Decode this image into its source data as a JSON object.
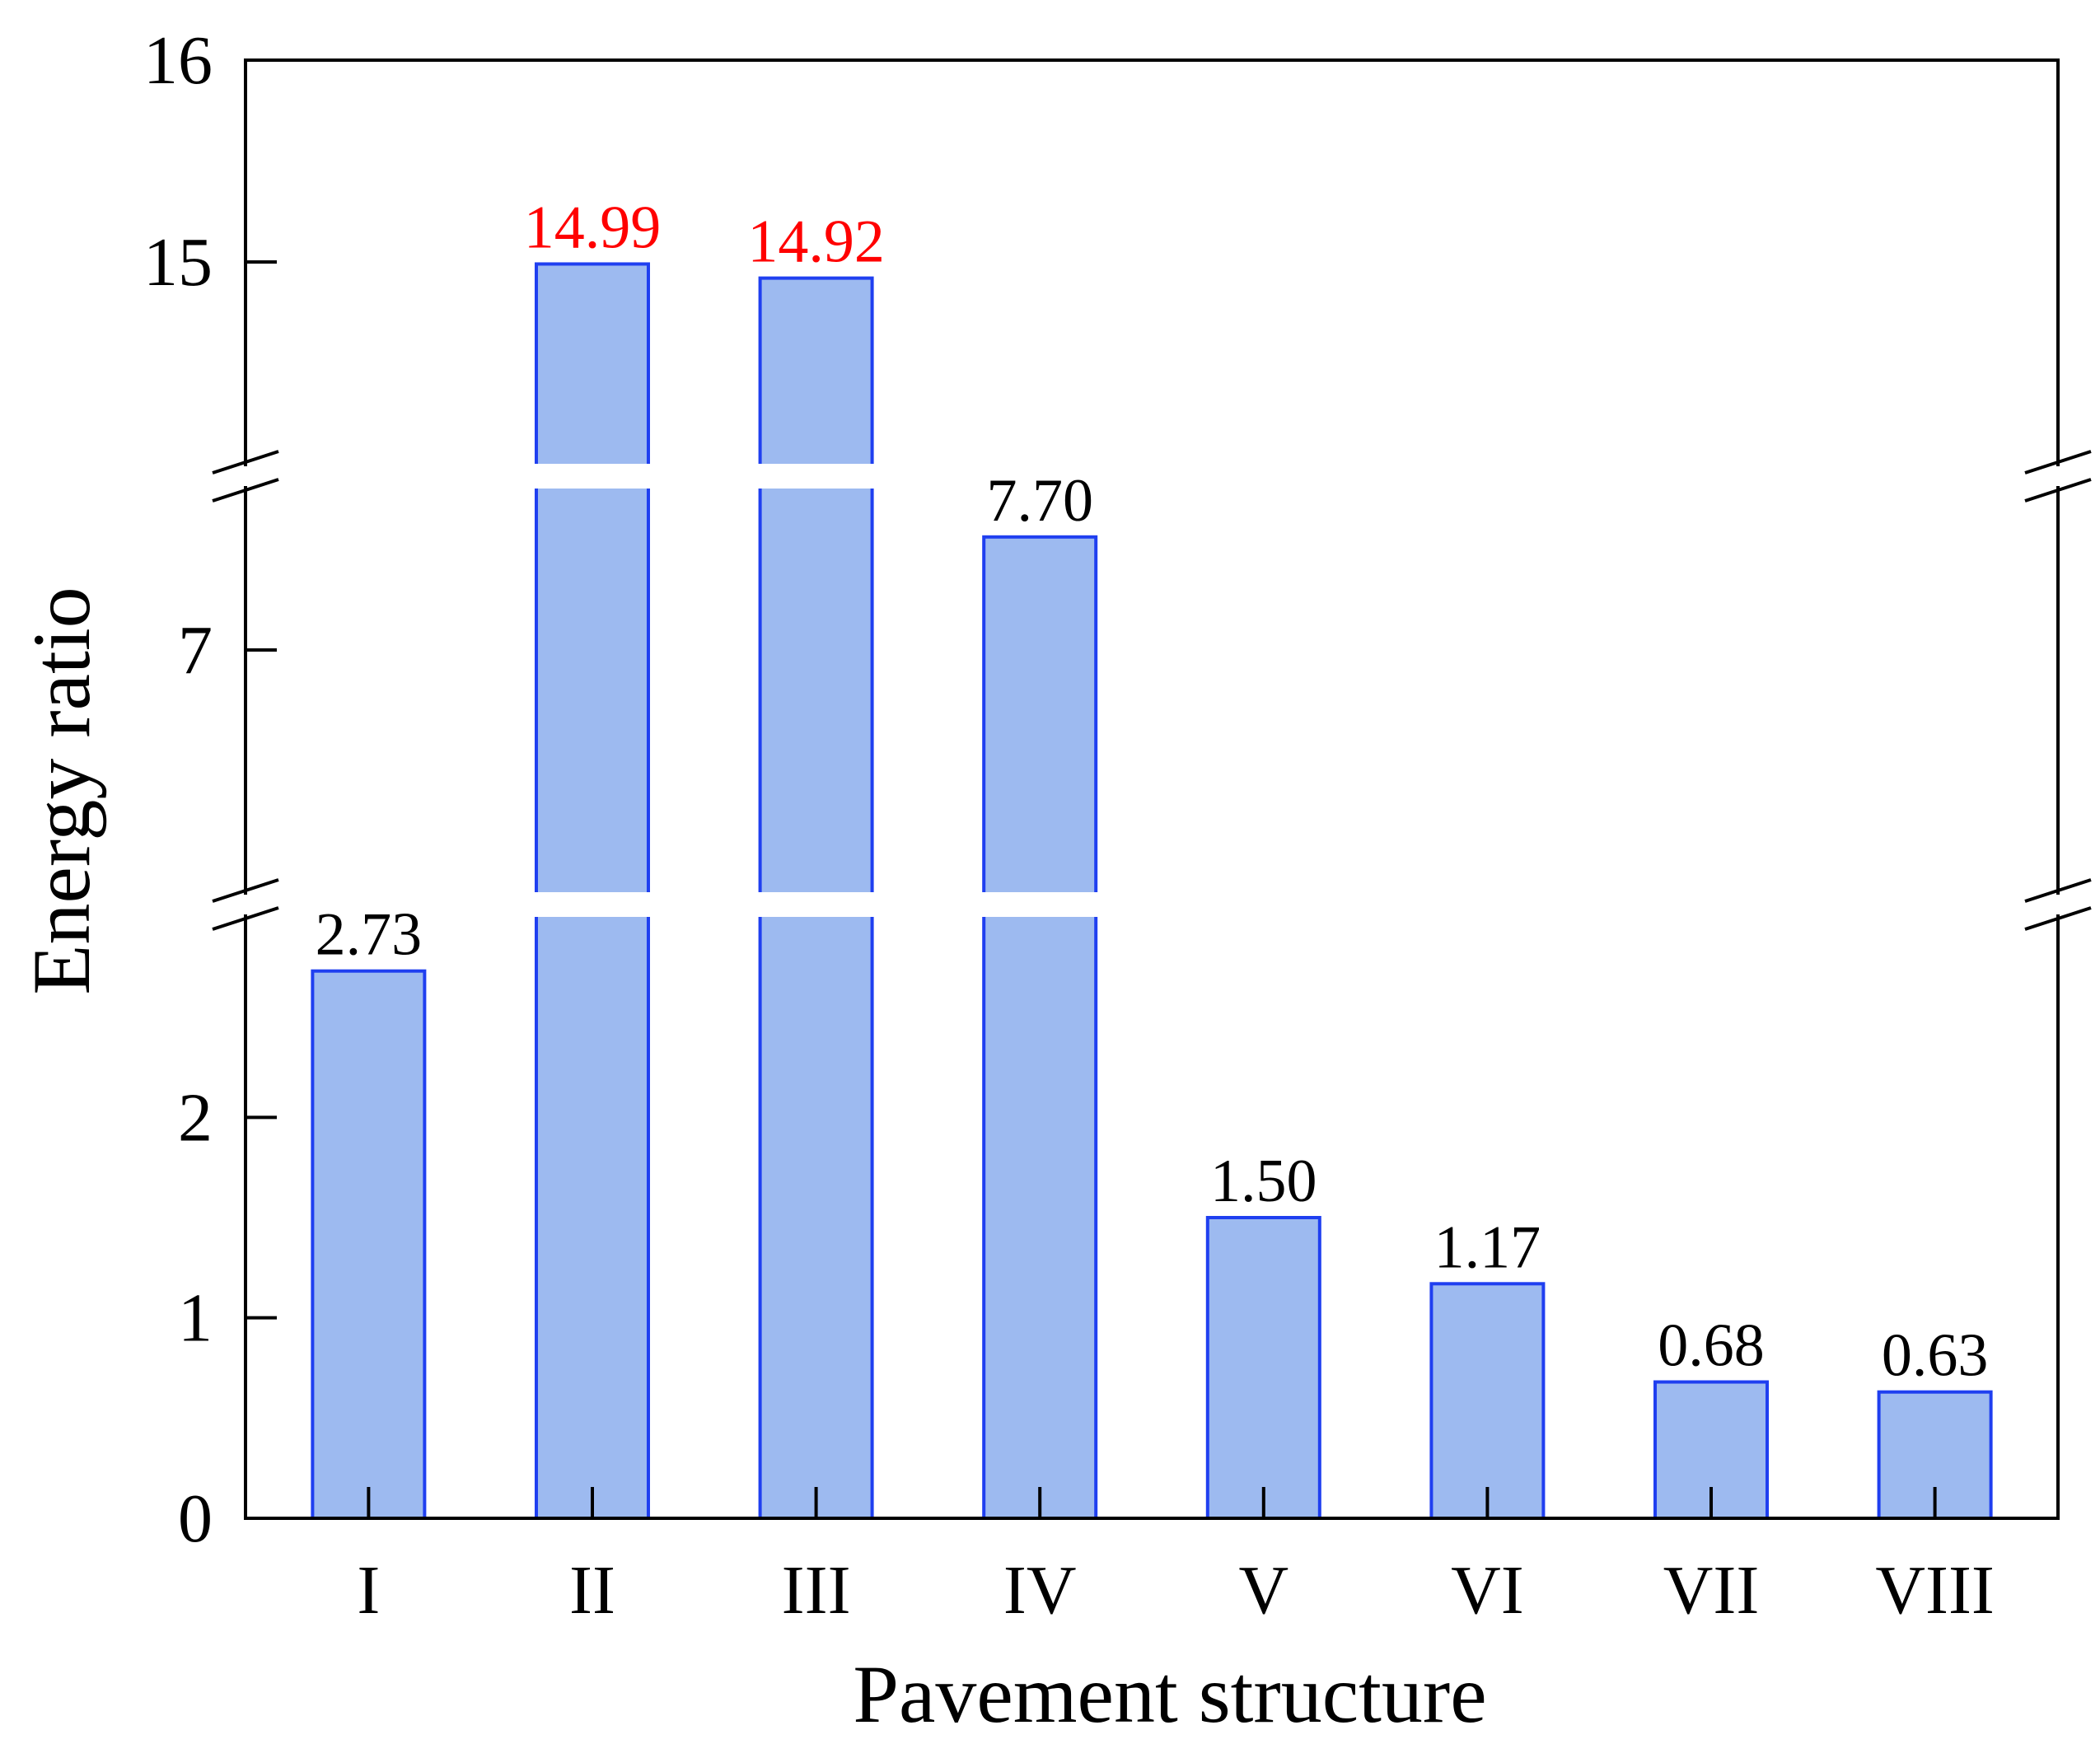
{
  "chart_data": {
    "type": "bar",
    "title": "",
    "xlabel": "Pavement structure",
    "ylabel": "Energy ratio",
    "categories": [
      "I",
      "II",
      "III",
      "IV",
      "V",
      "VI",
      "VII",
      "VIII"
    ],
    "values": [
      2.73,
      14.99,
      14.92,
      7.7,
      1.5,
      1.17,
      0.68,
      0.63
    ],
    "value_labels": [
      "2.73",
      "14.99",
      "14.92",
      "7.70",
      "1.50",
      "1.17",
      "0.68",
      "0.63"
    ],
    "highlight_indices": [
      1,
      2
    ],
    "ylim": [
      0,
      16
    ],
    "broken_axis": {
      "segments": [
        {
          "range": [
            0,
            3
          ],
          "ticks": [
            "0",
            "1",
            "2"
          ]
        },
        {
          "range": [
            5.5,
            8
          ],
          "ticks": [
            "7"
          ]
        },
        {
          "range": [
            14,
            16
          ],
          "ticks": [
            "15",
            "16"
          ]
        }
      ]
    },
    "grid": false,
    "colors": {
      "bar_fill": "#9dbaf0",
      "bar_edge": "#1f3ff0",
      "label_default": "#000000",
      "label_highlight": "#ff0000"
    }
  }
}
